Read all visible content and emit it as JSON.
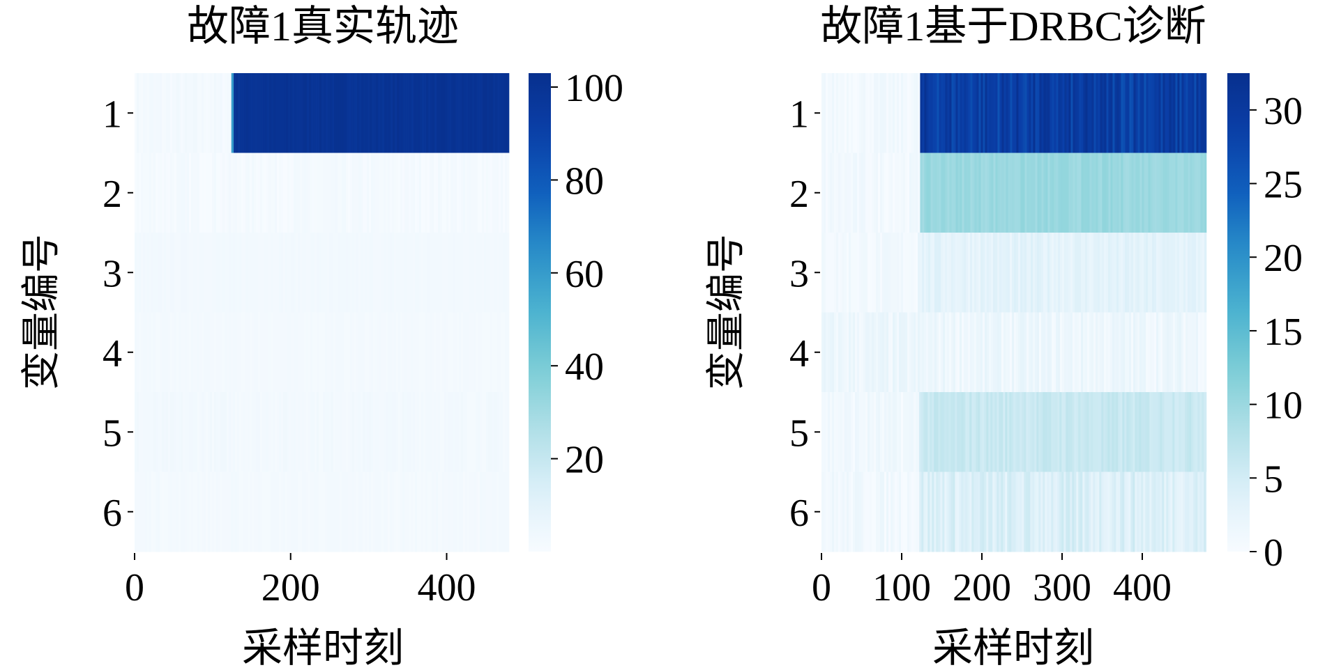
{
  "colormap": [
    "#f7fbff",
    "#ddf0f9",
    "#b2e0e8",
    "#7fcfd6",
    "#4db3d0",
    "#2a8fc9",
    "#1060bd",
    "#0a3fa8",
    "#08308e"
  ],
  "chart_data": [
    {
      "type": "heatmap",
      "title": "故障1真实轨迹",
      "xlabel": "采样时刻",
      "ylabel": "变量编号",
      "rows": [
        "1",
        "2",
        "3",
        "4",
        "5",
        "6"
      ],
      "x_range": [
        0,
        480
      ],
      "xticks": [
        0,
        200,
        400
      ],
      "xtick_labels": [
        "0",
        "200",
        "400"
      ],
      "color_range": [
        0,
        103
      ],
      "colorbar_ticks": [
        20,
        40,
        60,
        80,
        100
      ],
      "colorbar_labels": [
        "20",
        "40",
        "60",
        "80",
        "100"
      ],
      "segments": [
        {
          "row": 1,
          "start": 0,
          "end": 124,
          "value": 2,
          "noise": 1.5
        },
        {
          "row": 1,
          "start": 124,
          "end": 127,
          "value": 60,
          "noise": 0
        },
        {
          "row": 1,
          "start": 127,
          "end": 480,
          "value": 100,
          "noise": 2
        },
        {
          "row": 2,
          "start": 0,
          "end": 480,
          "value": 1.5,
          "noise": 1.5
        },
        {
          "row": 3,
          "start": 0,
          "end": 480,
          "value": 2.5,
          "noise": 0.6
        },
        {
          "row": 4,
          "start": 0,
          "end": 480,
          "value": 2.0,
          "noise": 0.6
        },
        {
          "row": 5,
          "start": 0,
          "end": 480,
          "value": 2.5,
          "noise": 1.0
        },
        {
          "row": 6,
          "start": 0,
          "end": 480,
          "value": 2.0,
          "noise": 0.8
        }
      ]
    },
    {
      "type": "heatmap",
      "title": "故障1基于DRBC诊断",
      "xlabel": "采样时刻",
      "ylabel": "变量编号",
      "rows": [
        "1",
        "2",
        "3",
        "4",
        "5",
        "6"
      ],
      "x_range": [
        0,
        480
      ],
      "xticks": [
        0,
        100,
        200,
        300,
        400
      ],
      "xtick_labels": [
        "0",
        "100",
        "200",
        "300",
        "400"
      ],
      "color_range": [
        0,
        32.5
      ],
      "colorbar_ticks": [
        0,
        5,
        10,
        15,
        20,
        25,
        30
      ],
      "colorbar_labels": [
        "0",
        "5",
        "10",
        "15",
        "20",
        "25",
        "30"
      ],
      "segments": [
        {
          "row": 1,
          "start": 0,
          "end": 123,
          "value": 0.8,
          "noise": 0.8
        },
        {
          "row": 1,
          "start": 123,
          "end": 480,
          "value": 29,
          "noise": 3
        },
        {
          "row": 2,
          "start": 0,
          "end": 123,
          "value": 0.8,
          "noise": 0.8
        },
        {
          "row": 2,
          "start": 123,
          "end": 480,
          "value": 10,
          "noise": 0.8
        },
        {
          "row": 3,
          "start": 0,
          "end": 120,
          "value": 0.8,
          "noise": 0.8
        },
        {
          "row": 3,
          "start": 120,
          "end": 480,
          "value": 3,
          "noise": 1.2
        },
        {
          "row": 4,
          "start": 0,
          "end": 480,
          "value": 1.5,
          "noise": 1.2
        },
        {
          "row": 5,
          "start": 0,
          "end": 122,
          "value": 1.0,
          "noise": 1.0
        },
        {
          "row": 5,
          "start": 122,
          "end": 480,
          "value": 6,
          "noise": 1.0
        },
        {
          "row": 6,
          "start": 0,
          "end": 122,
          "value": 1.0,
          "noise": 1.0
        },
        {
          "row": 6,
          "start": 122,
          "end": 480,
          "value": 4,
          "noise": 1.8
        }
      ]
    }
  ]
}
